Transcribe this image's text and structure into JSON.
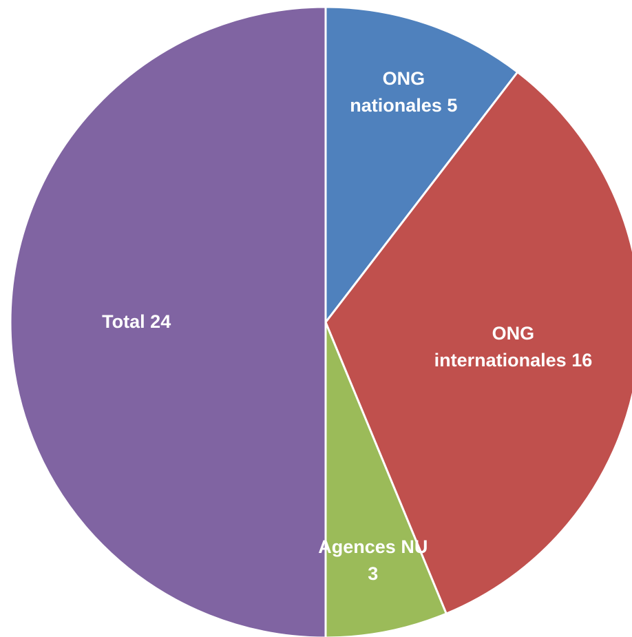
{
  "chart_data": {
    "type": "pie",
    "categories": [
      "ONG nationales",
      "ONG internationales",
      "Agences NU",
      "Total"
    ],
    "values": [
      5,
      16,
      3,
      24
    ],
    "colors": [
      "#4f81bd",
      "#c0504d",
      "#9bbb59",
      "#8064a2"
    ]
  }
}
